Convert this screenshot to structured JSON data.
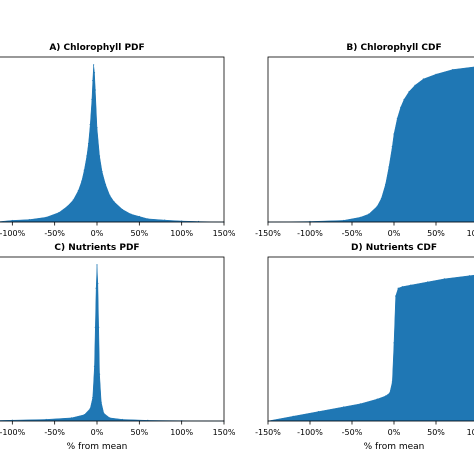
{
  "colors": {
    "fill": "#1f77b4"
  },
  "x_tick_labels": [
    "-150%",
    "-100%",
    "-50%",
    "0%",
    "50%",
    "100%",
    "150%"
  ],
  "chart_data": [
    {
      "id": "A",
      "type": "area",
      "title": "A) Chlorophyll PDF",
      "xlabel": "",
      "xlim": [
        -150,
        150
      ],
      "ylim": [
        0,
        1.05
      ],
      "x": [
        -150,
        -120,
        -100,
        -80,
        -60,
        -45,
        -35,
        -28,
        -22,
        -18,
        -15,
        -12,
        -10,
        -8,
        -6,
        -5,
        -4,
        -3,
        -2,
        0,
        3,
        6,
        10,
        15,
        20,
        30,
        40,
        50,
        60,
        80,
        100,
        120,
        150
      ],
      "values": [
        0.0,
        0.0,
        0.01,
        0.015,
        0.03,
        0.06,
        0.1,
        0.14,
        0.2,
        0.26,
        0.33,
        0.42,
        0.5,
        0.62,
        0.78,
        0.9,
        1.0,
        0.95,
        0.84,
        0.6,
        0.42,
        0.32,
        0.24,
        0.17,
        0.13,
        0.08,
        0.05,
        0.035,
        0.02,
        0.012,
        0.006,
        0.003,
        0.0
      ]
    },
    {
      "id": "B",
      "type": "area",
      "title": "B) Chlorophyll CDF",
      "xlabel": "",
      "xlim": [
        -150,
        150
      ],
      "ylim": [
        0,
        1.05
      ],
      "x": [
        -150,
        -100,
        -60,
        -40,
        -30,
        -20,
        -15,
        -10,
        -6,
        -2,
        0,
        4,
        8,
        12,
        18,
        25,
        35,
        50,
        70,
        100,
        150
      ],
      "values": [
        0.0,
        0.003,
        0.01,
        0.03,
        0.05,
        0.1,
        0.15,
        0.24,
        0.35,
        0.48,
        0.56,
        0.66,
        0.73,
        0.78,
        0.83,
        0.87,
        0.91,
        0.94,
        0.97,
        0.99,
        1.0
      ]
    },
    {
      "id": "C",
      "type": "area",
      "title": "C) Nutrients PDF",
      "xlabel": "% from mean",
      "xlim": [
        -150,
        150
      ],
      "ylim": [
        0,
        1.05
      ],
      "x": [
        -150,
        -100,
        -60,
        -30,
        -15,
        -8,
        -5,
        -3,
        -2,
        -1,
        0,
        1,
        2,
        3,
        5,
        8,
        15,
        30,
        60,
        100,
        150
      ],
      "values": [
        0.0,
        0.005,
        0.01,
        0.02,
        0.04,
        0.08,
        0.15,
        0.35,
        0.6,
        0.85,
        1.0,
        0.88,
        0.6,
        0.3,
        0.12,
        0.05,
        0.02,
        0.01,
        0.004,
        0.002,
        0.0
      ]
    },
    {
      "id": "D",
      "type": "area",
      "title": "D) Nutrients CDF",
      "xlabel": "% from mean",
      "xlim": [
        -150,
        150
      ],
      "ylim": [
        0,
        1.05
      ],
      "x": [
        -150,
        -120,
        -90,
        -60,
        -40,
        -20,
        -10,
        -5,
        -2,
        0,
        2,
        5,
        10,
        20,
        40,
        60,
        90,
        120,
        150
      ],
      "values": [
        0.0,
        0.03,
        0.06,
        0.09,
        0.11,
        0.14,
        0.16,
        0.18,
        0.25,
        0.5,
        0.8,
        0.85,
        0.86,
        0.87,
        0.89,
        0.91,
        0.93,
        0.95,
        0.97
      ]
    }
  ]
}
